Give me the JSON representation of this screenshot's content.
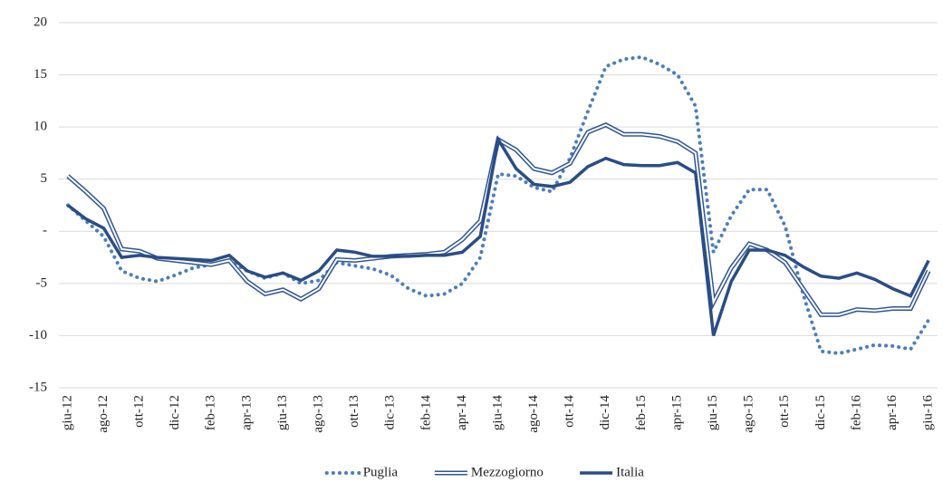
{
  "chart_data": {
    "type": "line",
    "categories": [
      "giu-12",
      null,
      "ago-12",
      null,
      "ott-12",
      null,
      "dic-12",
      null,
      "feb-13",
      null,
      "apr-13",
      null,
      "giu-13",
      null,
      "ago-13",
      null,
      "ott-13",
      null,
      "dic-13",
      null,
      "feb-14",
      null,
      "apr-14",
      null,
      "giu-14",
      null,
      "ago-14",
      null,
      "ott-14",
      null,
      "dic-14",
      null,
      "feb-15",
      null,
      "apr-15",
      null,
      "giu-15",
      null,
      "ago-15",
      null,
      "ott-15",
      null,
      "dic-15",
      null,
      "feb-16",
      null,
      "apr-16",
      null,
      "giu-16"
    ],
    "series": [
      {
        "name": "Puglia",
        "color": "#4a7ebb",
        "style": "dotted",
        "values": [
          2.5,
          1.0,
          -0.5,
          -3.8,
          -4.5,
          -4.8,
          -4.2,
          -3.5,
          -3.2,
          -2.8,
          -3.8,
          -4.5,
          -4.0,
          -5.0,
          -4.7,
          -3.0,
          -3.3,
          -3.6,
          -4.2,
          -5.5,
          -6.2,
          -6.0,
          -5.0,
          -2.5,
          5.5,
          5.3,
          4.2,
          3.8,
          7.0,
          11.5,
          15.8,
          16.5,
          16.7,
          16.0,
          15.0,
          12.0,
          -2.0,
          1.5,
          4.0,
          4.0,
          0.5,
          -6.0,
          -11.5,
          -11.7,
          -11.3,
          -10.9,
          -11.0,
          -11.3,
          -8.5
        ]
      },
      {
        "name": "Mezzogiorno",
        "color": "#2f5597",
        "style": "double",
        "values": [
          5.3,
          3.8,
          2.2,
          -1.7,
          -1.9,
          -2.6,
          -2.8,
          -3.0,
          -3.2,
          -2.8,
          -4.8,
          -6.0,
          -5.6,
          -6.5,
          -5.5,
          -2.7,
          -2.8,
          -2.6,
          -2.4,
          -2.3,
          -2.2,
          -2.0,
          -0.8,
          1.0,
          8.8,
          7.8,
          6.0,
          5.6,
          6.5,
          9.5,
          10.2,
          9.3,
          9.3,
          9.1,
          8.6,
          7.5,
          -6.8,
          -3.5,
          -1.2,
          -1.8,
          -3.0,
          -5.5,
          -8.0,
          -8.0,
          -7.5,
          -7.6,
          -7.4,
          -7.4,
          -3.8
        ]
      },
      {
        "name": "Italia",
        "color": "#2a4d85",
        "style": "solid",
        "values": [
          2.5,
          1.2,
          0.3,
          -2.5,
          -2.3,
          -2.5,
          -2.6,
          -2.7,
          -2.8,
          -2.3,
          -3.8,
          -4.4,
          -4.0,
          -4.7,
          -3.8,
          -1.8,
          -2.0,
          -2.4,
          -2.4,
          -2.4,
          -2.3,
          -2.3,
          -2.0,
          -0.5,
          8.8,
          6.0,
          4.5,
          4.3,
          4.7,
          6.2,
          7.0,
          6.4,
          6.3,
          6.3,
          6.6,
          5.6,
          -10.0,
          -4.8,
          -1.8,
          -1.8,
          -2.3,
          -3.4,
          -4.3,
          -4.5,
          -4.0,
          -4.6,
          -5.5,
          -6.2,
          -2.8
        ]
      }
    ],
    "ylim": [
      -15,
      20
    ],
    "yticks": [
      -15,
      -10,
      -5,
      {
        "value": 0,
        "label": "-"
      },
      5,
      10,
      15,
      20
    ],
    "grid": true,
    "legend": "bottom"
  }
}
